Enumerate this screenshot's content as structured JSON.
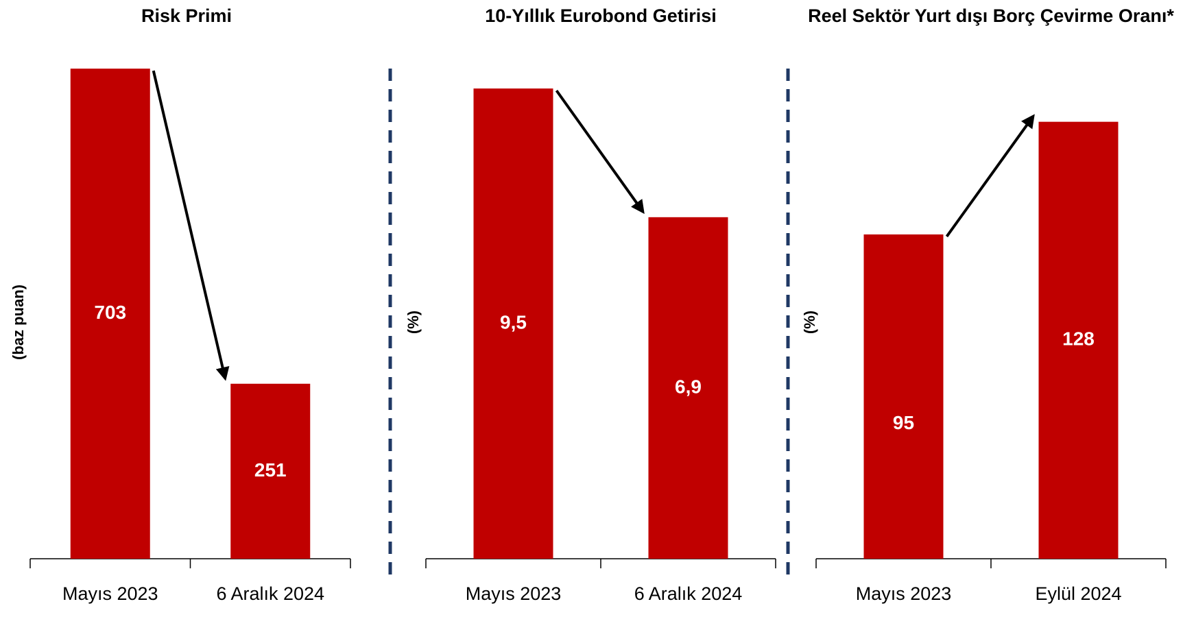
{
  "chart_data": [
    {
      "type": "bar",
      "title": "Risk Primi",
      "ylabel": "(baz puan)",
      "categories": [
        "Mayıs 2023",
        "6 Aralık 2024"
      ],
      "values": [
        703,
        251
      ],
      "color": "#c00000",
      "ylim": [
        0,
        710
      ]
    },
    {
      "type": "bar",
      "title": "10-Yıllık Eurobond Getirisi",
      "ylabel": "(%)",
      "categories": [
        "Mayıs 2023",
        "6 Aralık 2024"
      ],
      "values": [
        9.5,
        6.9
      ],
      "value_labels": [
        "9,5",
        "6,9"
      ],
      "color": "#c00000",
      "ylim": [
        0,
        10
      ]
    },
    {
      "type": "bar",
      "title": "Reel Sektör Yurt dışı Borç Çevirme Oranı*",
      "ylabel": "(%)",
      "categories": [
        "Mayıs 2023",
        "Eylül 2024"
      ],
      "values": [
        95,
        128
      ],
      "color": "#c00000",
      "ylim": [
        0,
        145
      ]
    }
  ]
}
